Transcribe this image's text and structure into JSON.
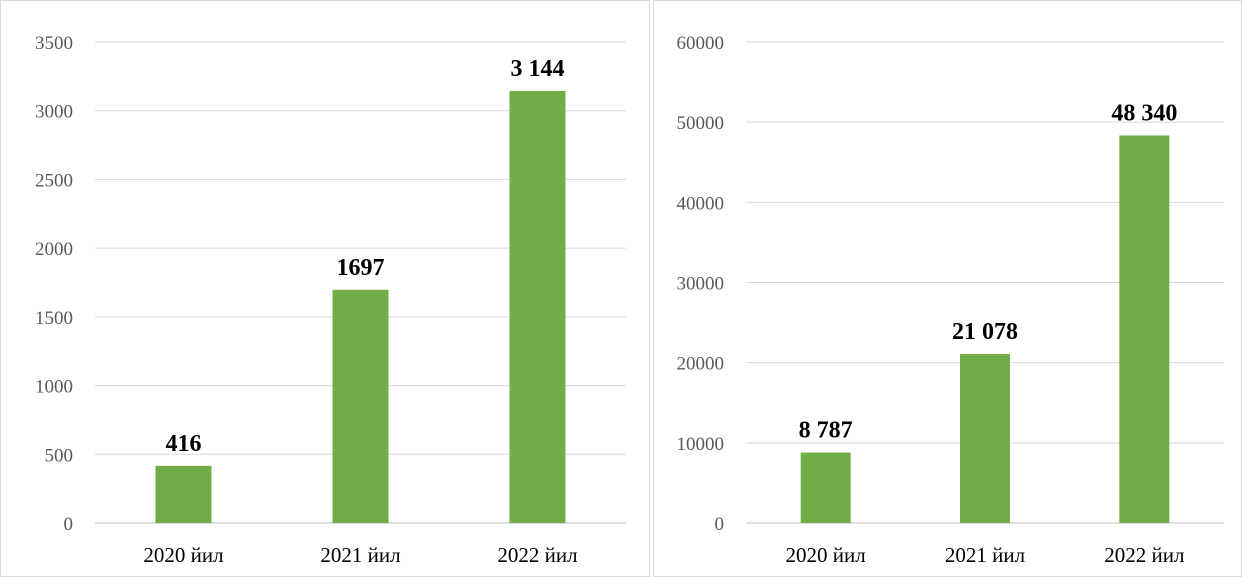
{
  "chart_data": [
    {
      "type": "bar",
      "categories": [
        "2020 йил",
        "2021 йил",
        "2022 йил"
      ],
      "values": [
        416,
        1697,
        3144
      ],
      "data_labels": [
        "416",
        "1697",
        "3 144"
      ],
      "yticks": [
        "0",
        "500",
        "1000",
        "1500",
        "2000",
        "2500",
        "3000",
        "3500"
      ],
      "ylim": [
        0,
        3500
      ],
      "bar_color": "#70ad47",
      "grid": true,
      "legend": "none"
    },
    {
      "type": "bar",
      "categories": [
        "2020 йил",
        "2021 йил",
        "2022 йил"
      ],
      "values": [
        8787,
        21078,
        48340
      ],
      "data_labels": [
        "8 787",
        "21 078",
        "48 340"
      ],
      "yticks": [
        "0",
        "10000",
        "20000",
        "30000",
        "40000",
        "50000",
        "60000"
      ],
      "ylim": [
        0,
        60000
      ],
      "bar_color": "#70ad47",
      "grid": true,
      "legend": "none"
    }
  ]
}
